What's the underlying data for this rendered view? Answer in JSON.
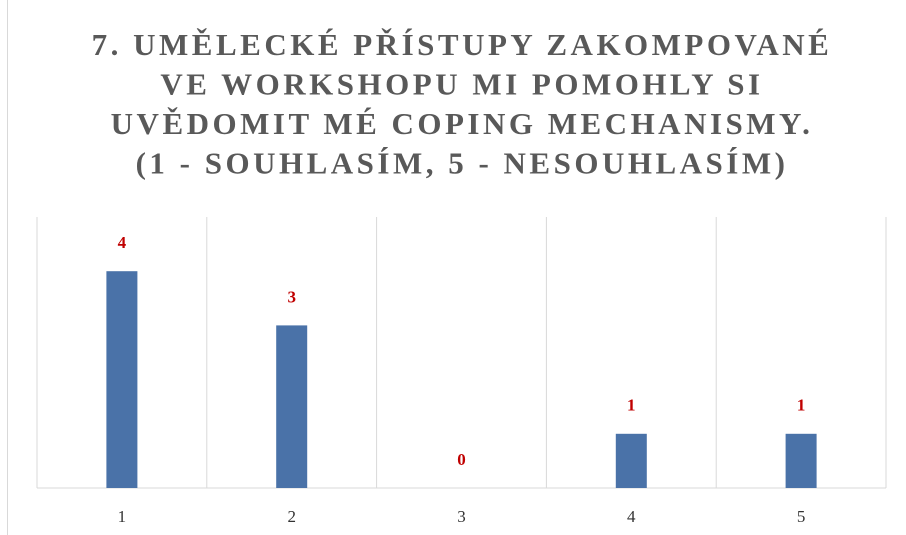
{
  "chart_data": {
    "type": "bar",
    "title": [
      "7. UMĚLECKÉ PŘÍSTUPY ZAKOMPOVANÉ",
      "VE WORKSHOPU MI POMOHLY SI",
      "UVĚDOMIT MÉ COPING MECHANISMY.",
      "(1 - SOUHLASÍM, 5 - NESOUHLASÍM)"
    ],
    "categories": [
      "1",
      "2",
      "3",
      "4",
      "5"
    ],
    "values": [
      4,
      3,
      0,
      1,
      1
    ],
    "color": "#4a72a8",
    "ylim": [
      0,
      5
    ]
  }
}
